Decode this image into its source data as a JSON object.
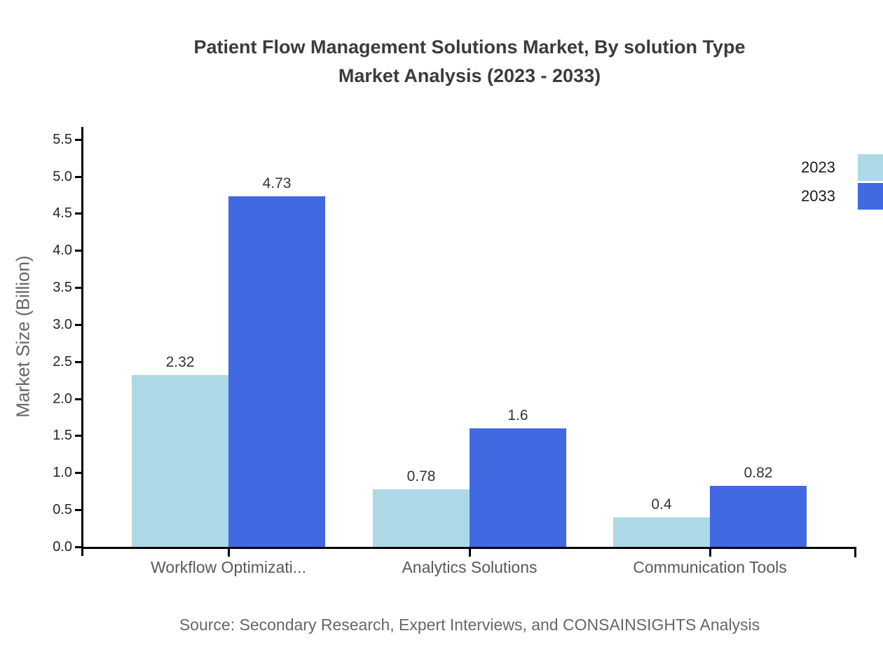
{
  "title": {
    "line1": "Patient Flow Management Solutions Market, By solution Type",
    "line2": "Market Analysis (2023 - 2033)"
  },
  "source": "Source: Secondary Research, Expert Interviews, and CONSAINSIGHTS Analysis",
  "chart_data": {
    "type": "bar",
    "title": "Patient Flow Management Solutions Market, By solution Type Market Analysis (2023 - 2033)",
    "categories": [
      "Workflow Optimizati...",
      "Analytics Solutions",
      "Communication Tools"
    ],
    "series": [
      {
        "name": "2023",
        "color": "#ADD8E6",
        "values": [
          2.32,
          0.78,
          0.4
        ]
      },
      {
        "name": "2033",
        "color": "#4169E1",
        "values": [
          4.73,
          1.6,
          0.82
        ]
      }
    ],
    "xlabel": "",
    "ylabel": "Market Size (Billion)",
    "ylim": [
      0,
      5.5
    ],
    "ytick_step": 0.5,
    "yticks": [
      "0.0",
      "0.5",
      "1.0",
      "1.5",
      "2.0",
      "2.5",
      "3.0",
      "3.5",
      "4.0",
      "4.5",
      "5.0",
      "5.5"
    ],
    "data_labels": [
      "2.32",
      "4.73",
      "0.78",
      "1.6",
      "0.4",
      "0.82"
    ],
    "legend_position": "top-right",
    "grid": false,
    "axis_color": "#000000"
  }
}
